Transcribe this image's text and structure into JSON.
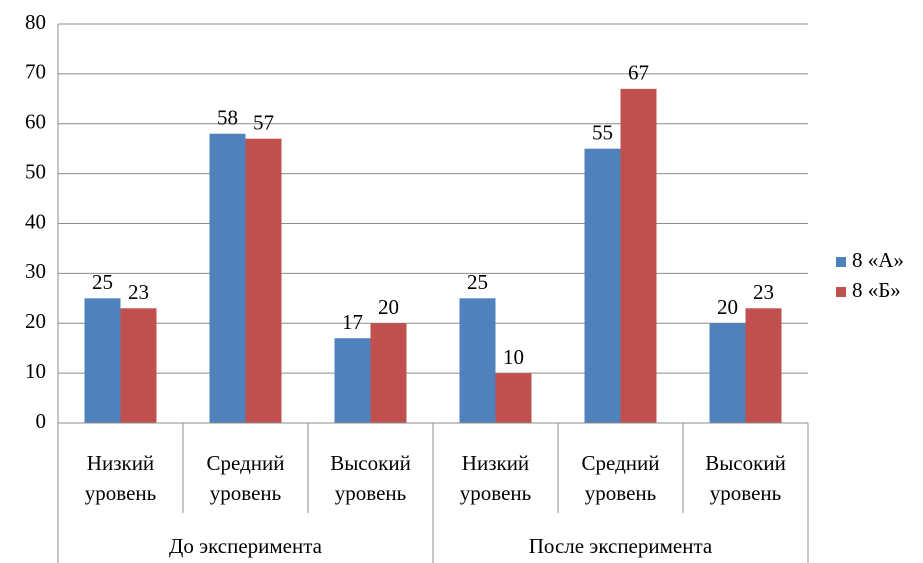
{
  "chart_data": {
    "type": "bar",
    "groups": [
      "До эксперимента",
      "После эксперимента"
    ],
    "categories": [
      "Низкий уровень",
      "Средний уровень",
      "Высокий уровень",
      "Низкий уровень",
      "Средний уровень",
      "Высокий уровень"
    ],
    "series": [
      {
        "name": "8 «А»",
        "color": "#4f81bd",
        "values": [
          25,
          58,
          17,
          25,
          55,
          20
        ]
      },
      {
        "name": "8 «Б»",
        "color": "#c0504d",
        "values": [
          23,
          57,
          20,
          10,
          67,
          23
        ]
      }
    ],
    "ylim": [
      0,
      80
    ],
    "yticks": [
      0,
      10,
      20,
      30,
      40,
      50,
      60,
      70,
      80
    ],
    "grid": true,
    "legend": "right"
  }
}
